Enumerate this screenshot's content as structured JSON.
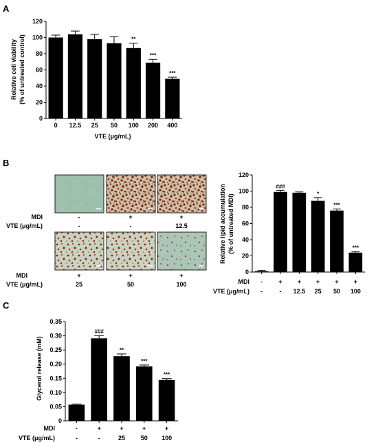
{
  "panels": {
    "a": "A",
    "b": "B",
    "c": "C"
  },
  "chart_data": [
    {
      "id": "A",
      "type": "bar",
      "categories": [
        "0",
        "12.5",
        "25",
        "50",
        "100",
        "200",
        "400"
      ],
      "values": [
        100,
        104,
        98,
        93,
        87,
        69,
        49
      ],
      "errors": [
        3,
        4,
        6,
        8,
        6,
        4,
        2
      ],
      "significance": [
        "",
        "",
        "",
        "",
        "**",
        "***",
        "***"
      ],
      "ylabel_line1": "Relative cell viability",
      "ylabel_line2": "(% of untreated control)",
      "xlabel": "VTE (μg/mL)",
      "ylim": [
        0,
        120
      ],
      "yticks": [
        "0",
        "20",
        "40",
        "60",
        "80",
        "100",
        "120"
      ]
    },
    {
      "id": "B",
      "type": "bar",
      "categories": [
        "1",
        "2",
        "3",
        "4",
        "5",
        "6"
      ],
      "values": [
        1,
        99,
        98,
        88,
        76,
        24
      ],
      "errors": [
        1,
        2,
        1,
        4,
        2,
        1
      ],
      "significance": [
        "",
        "###",
        "",
        "*",
        "***",
        "***"
      ],
      "ylabel_line1": "Relative lipid accumulation",
      "ylabel_line2": "(% of untreated MDI)",
      "ylim": [
        0,
        120
      ],
      "yticks": [
        "0",
        "20",
        "40",
        "60",
        "80",
        "100",
        "120"
      ],
      "row_labels": {
        "mdi": "MDI",
        "vte": "VTE (μg/mL)"
      },
      "mdi_row": [
        "-",
        "+",
        "+",
        "+",
        "+",
        "+"
      ],
      "vte_row": [
        "-",
        "-",
        "12.5",
        "25",
        "50",
        "100"
      ]
    },
    {
      "id": "C",
      "type": "bar",
      "categories": [
        "1",
        "2",
        "3",
        "4",
        "5"
      ],
      "values": [
        0.057,
        0.291,
        0.228,
        0.192,
        0.144
      ],
      "errors": [
        0.002,
        0.01,
        0.008,
        0.005,
        0.005
      ],
      "significance": [
        "",
        "###",
        "**",
        "***",
        "***"
      ],
      "ylabel": "Glycerol release (mM)",
      "ylim": [
        0,
        0.35
      ],
      "yticks": [
        "0",
        "0.05",
        "0.10",
        "0.15",
        "0.20",
        "0.25",
        "0.30",
        "0.35"
      ],
      "row_labels": {
        "mdi": "MDI",
        "vte": "VTE (μg/mL)"
      },
      "mdi_row": [
        "-",
        "+",
        "+",
        "+",
        "+"
      ],
      "vte_row": [
        "-",
        "-",
        "25",
        "50",
        "100"
      ]
    }
  ],
  "micrographs": {
    "row_labels": {
      "mdi": "MDI",
      "vte": "VTE (μg/mL)"
    },
    "row1": {
      "mdi": [
        "-",
        "+",
        "+"
      ],
      "vte": [
        "-",
        "-",
        "12.5"
      ]
    },
    "row2": {
      "mdi": [
        "+",
        "+",
        "+"
      ],
      "vte": [
        "25",
        "50",
        "100"
      ]
    }
  }
}
